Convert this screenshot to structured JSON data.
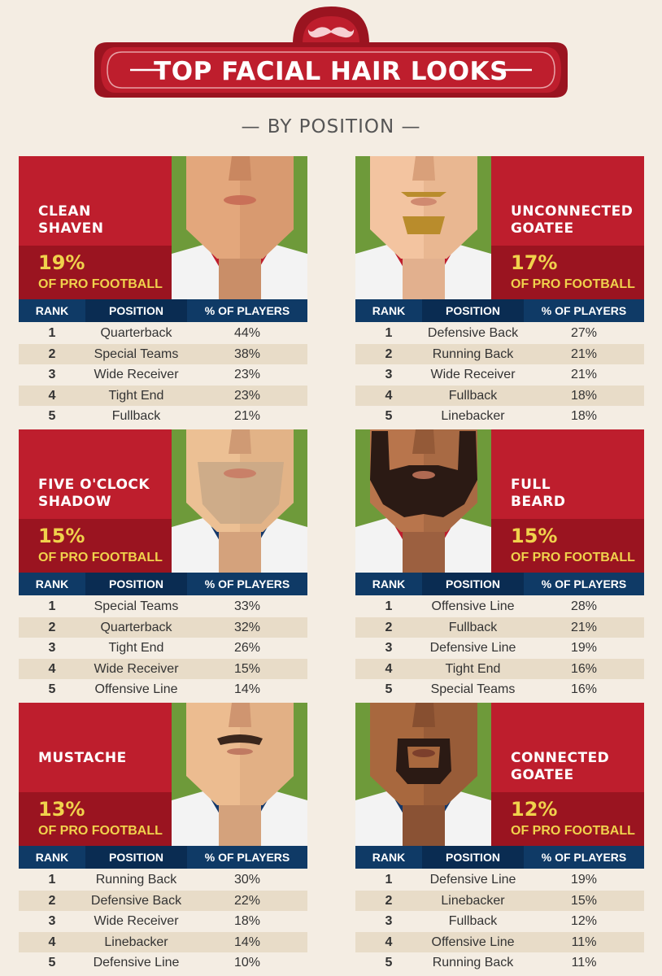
{
  "header": {
    "title": "TOP FACIAL HAIR LOOKS",
    "subtitle": "— BY POSITION —"
  },
  "table_headers": {
    "rank": "RANK",
    "position": "POSITION",
    "pct": "% OF PLAYERS"
  },
  "pct_label": "OF PRO FOOTBALL",
  "colors": {
    "red": "#be1e2d",
    "dark_red": "#9a1420",
    "navy": "#0f3a66",
    "gold": "#f0d24c",
    "background": "#f4ede3",
    "row_alt": "#e8dcc8",
    "grass_green": "#6e9a3a"
  },
  "cards": [
    {
      "name": "CLEAN\nSHAVEN",
      "percent": "19%",
      "rows": [
        {
          "rank": "1",
          "position": "Quarterback",
          "pct": "44%"
        },
        {
          "rank": "2",
          "position": "Special Teams",
          "pct": "38%"
        },
        {
          "rank": "3",
          "position": "Wide Receiver",
          "pct": "23%"
        },
        {
          "rank": "4",
          "position": "Tight End",
          "pct": "23%"
        },
        {
          "rank": "5",
          "position": "Fullback",
          "pct": "21%"
        }
      ]
    },
    {
      "name": "UNCONNECTED\nGOATEE",
      "percent": "17%",
      "rows": [
        {
          "rank": "1",
          "position": "Defensive Back",
          "pct": "27%"
        },
        {
          "rank": "2",
          "position": "Running Back",
          "pct": "21%"
        },
        {
          "rank": "3",
          "position": "Wide Receiver",
          "pct": "21%"
        },
        {
          "rank": "4",
          "position": "Fullback",
          "pct": "18%"
        },
        {
          "rank": "5",
          "position": "Linebacker",
          "pct": "18%"
        }
      ]
    },
    {
      "name": "FIVE O'CLOCK\nSHADOW",
      "percent": "15%",
      "rows": [
        {
          "rank": "1",
          "position": "Special Teams",
          "pct": "33%"
        },
        {
          "rank": "2",
          "position": "Quarterback",
          "pct": "32%"
        },
        {
          "rank": "3",
          "position": "Tight End",
          "pct": "26%"
        },
        {
          "rank": "4",
          "position": "Wide Receiver",
          "pct": "15%"
        },
        {
          "rank": "5",
          "position": "Offensive Line",
          "pct": "14%"
        }
      ]
    },
    {
      "name": "FULL\nBEARD",
      "percent": "15%",
      "rows": [
        {
          "rank": "1",
          "position": "Offensive Line",
          "pct": "28%"
        },
        {
          "rank": "2",
          "position": "Fullback",
          "pct": "21%"
        },
        {
          "rank": "3",
          "position": "Defensive Line",
          "pct": "19%"
        },
        {
          "rank": "4",
          "position": "Tight End",
          "pct": "16%"
        },
        {
          "rank": "5",
          "position": "Special Teams",
          "pct": "16%"
        }
      ]
    },
    {
      "name": "MUSTACHE",
      "percent": "13%",
      "rows": [
        {
          "rank": "1",
          "position": "Running Back",
          "pct": "30%"
        },
        {
          "rank": "2",
          "position": "Defensive Back",
          "pct": "22%"
        },
        {
          "rank": "3",
          "position": "Wide Receiver",
          "pct": "18%"
        },
        {
          "rank": "4",
          "position": "Linebacker",
          "pct": "14%"
        },
        {
          "rank": "5",
          "position": "Defensive Line",
          "pct": "10%"
        }
      ]
    },
    {
      "name": "CONNECTED\nGOATEE",
      "percent": "12%",
      "rows": [
        {
          "rank": "1",
          "position": "Defensive Line",
          "pct": "19%"
        },
        {
          "rank": "2",
          "position": "Linebacker",
          "pct": "15%"
        },
        {
          "rank": "3",
          "position": "Fullback",
          "pct": "12%"
        },
        {
          "rank": "4",
          "position": "Offensive Line",
          "pct": "11%"
        },
        {
          "rank": "5",
          "position": "Running Back",
          "pct": "11%"
        }
      ]
    }
  ]
}
